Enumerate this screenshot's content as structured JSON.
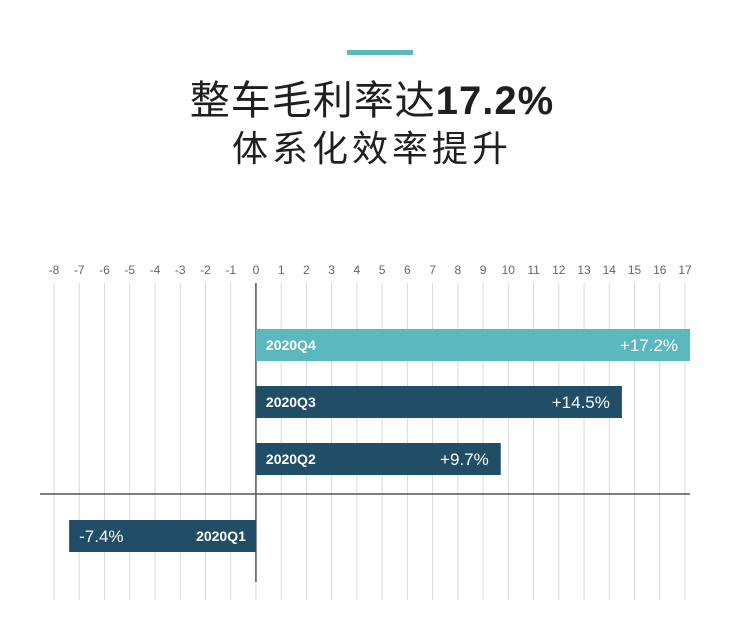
{
  "header": {
    "title_prefix": "整车毛利率达",
    "title_highlight": "17.2%",
    "subtitle": "体系化效率提升"
  },
  "colors": {
    "accent": "#5bb8be",
    "dark_bar": "#1f4e66",
    "light_bar": "#5bb8be"
  },
  "chart_data": {
    "type": "bar",
    "orientation": "horizontal",
    "categories": [
      "2020Q4",
      "2020Q3",
      "2020Q2",
      "2020Q1"
    ],
    "values": [
      17.2,
      14.5,
      9.7,
      -7.4
    ],
    "value_labels": [
      "+17.2%",
      "+14.5%",
      "+9.7%",
      "-7.4%"
    ],
    "bar_colors": [
      "#5bb8be",
      "#1f4e66",
      "#1f4e66",
      "#1f4e66"
    ],
    "xlim": [
      -8,
      17
    ],
    "xticks": [
      -8,
      -7,
      -6,
      -5,
      -4,
      -3,
      -2,
      -1,
      0,
      1,
      2,
      3,
      4,
      5,
      6,
      7,
      8,
      9,
      10,
      11,
      12,
      13,
      14,
      15,
      16,
      17
    ],
    "grid": true,
    "legend": "none"
  }
}
